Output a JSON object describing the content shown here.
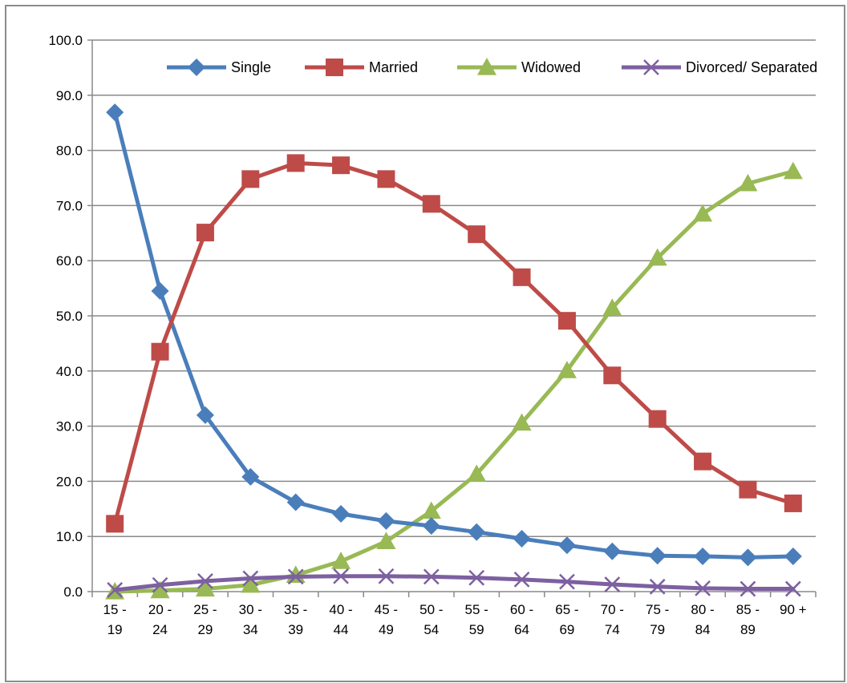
{
  "chart_data": {
    "type": "line",
    "title": "",
    "xlabel": "",
    "ylabel": "",
    "ylim": [
      0,
      100
    ],
    "y_ticks": [
      "0.0",
      "10.0",
      "20.0",
      "30.0",
      "40.0",
      "50.0",
      "60.0",
      "70.0",
      "80.0",
      "90.0",
      "100.0"
    ],
    "grid": true,
    "legend_position": "top",
    "categories": [
      [
        "15 -",
        "19"
      ],
      [
        "20 -",
        "24"
      ],
      [
        "25 -",
        "29"
      ],
      [
        "30 -",
        "34"
      ],
      [
        "35 -",
        "39"
      ],
      [
        "40 -",
        "44"
      ],
      [
        "45 -",
        "49"
      ],
      [
        "50 -",
        "54"
      ],
      [
        "55 -",
        "59"
      ],
      [
        "60 -",
        "64"
      ],
      [
        "65 -",
        "69"
      ],
      [
        "70 -",
        "74"
      ],
      [
        "75 -",
        "79"
      ],
      [
        "80 -",
        "84"
      ],
      [
        "85 -",
        "89"
      ],
      [
        "90 +",
        ""
      ]
    ],
    "series": [
      {
        "name": "Single",
        "color": "#4a7ebb",
        "marker": "diamond",
        "values": [
          86.9,
          54.5,
          32.0,
          20.8,
          16.2,
          14.1,
          12.8,
          11.9,
          10.8,
          9.6,
          8.4,
          7.3,
          6.5,
          6.4,
          6.2,
          6.4
        ]
      },
      {
        "name": "Married",
        "color": "#be4b48",
        "marker": "square",
        "values": [
          12.3,
          43.5,
          65.1,
          74.8,
          77.7,
          77.3,
          74.8,
          70.3,
          64.8,
          57.0,
          49.1,
          39.2,
          31.3,
          23.6,
          18.5,
          16.0
        ]
      },
      {
        "name": "Widowed",
        "color": "#98b954",
        "marker": "triangle",
        "values": [
          0.0,
          0.2,
          0.5,
          1.2,
          3.0,
          5.5,
          9.1,
          14.6,
          21.3,
          30.6,
          40.1,
          51.4,
          60.5,
          68.5,
          74.0,
          76.2
        ]
      },
      {
        "name": "Divorced/ Separated",
        "color": "#7d60a0",
        "marker": "x",
        "values": [
          0.3,
          1.2,
          1.9,
          2.4,
          2.7,
          2.8,
          2.8,
          2.7,
          2.5,
          2.2,
          1.8,
          1.3,
          0.9,
          0.6,
          0.5,
          0.5
        ]
      }
    ]
  }
}
